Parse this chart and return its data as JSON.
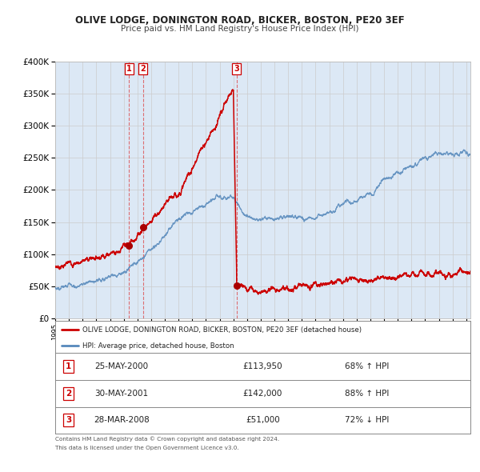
{
  "title": "OLIVE LODGE, DONINGTON ROAD, BICKER, BOSTON, PE20 3EF",
  "subtitle": "Price paid vs. HM Land Registry's House Price Index (HPI)",
  "legend_label_red": "OLIVE LODGE, DONINGTON ROAD, BICKER, BOSTON, PE20 3EF (detached house)",
  "legend_label_blue": "HPI: Average price, detached house, Boston",
  "footnote1": "Contains HM Land Registry data © Crown copyright and database right 2024.",
  "footnote2": "This data is licensed under the Open Government Licence v3.0.",
  "transactions": [
    {
      "num": 1,
      "date": "25-MAY-2000",
      "price": 113950,
      "pct": "68%",
      "dir": "↑",
      "year": 2000.38
    },
    {
      "num": 2,
      "date": "30-MAY-2001",
      "price": 142000,
      "pct": "88%",
      "dir": "↑",
      "year": 2001.41
    },
    {
      "num": 3,
      "date": "28-MAR-2008",
      "price": 51000,
      "pct": "72%",
      "dir": "↓",
      "year": 2008.24
    }
  ],
  "red_color": "#cc0000",
  "blue_color": "#5588bb",
  "dot_color": "#aa0000",
  "vline_color": "#dd4444",
  "grid_color": "#cccccc",
  "chart_bg": "#dce8f5",
  "background_color": "#ffffff",
  "ylim": [
    0,
    400000
  ],
  "xlim_start": 1995.0,
  "xlim_end": 2025.3
}
